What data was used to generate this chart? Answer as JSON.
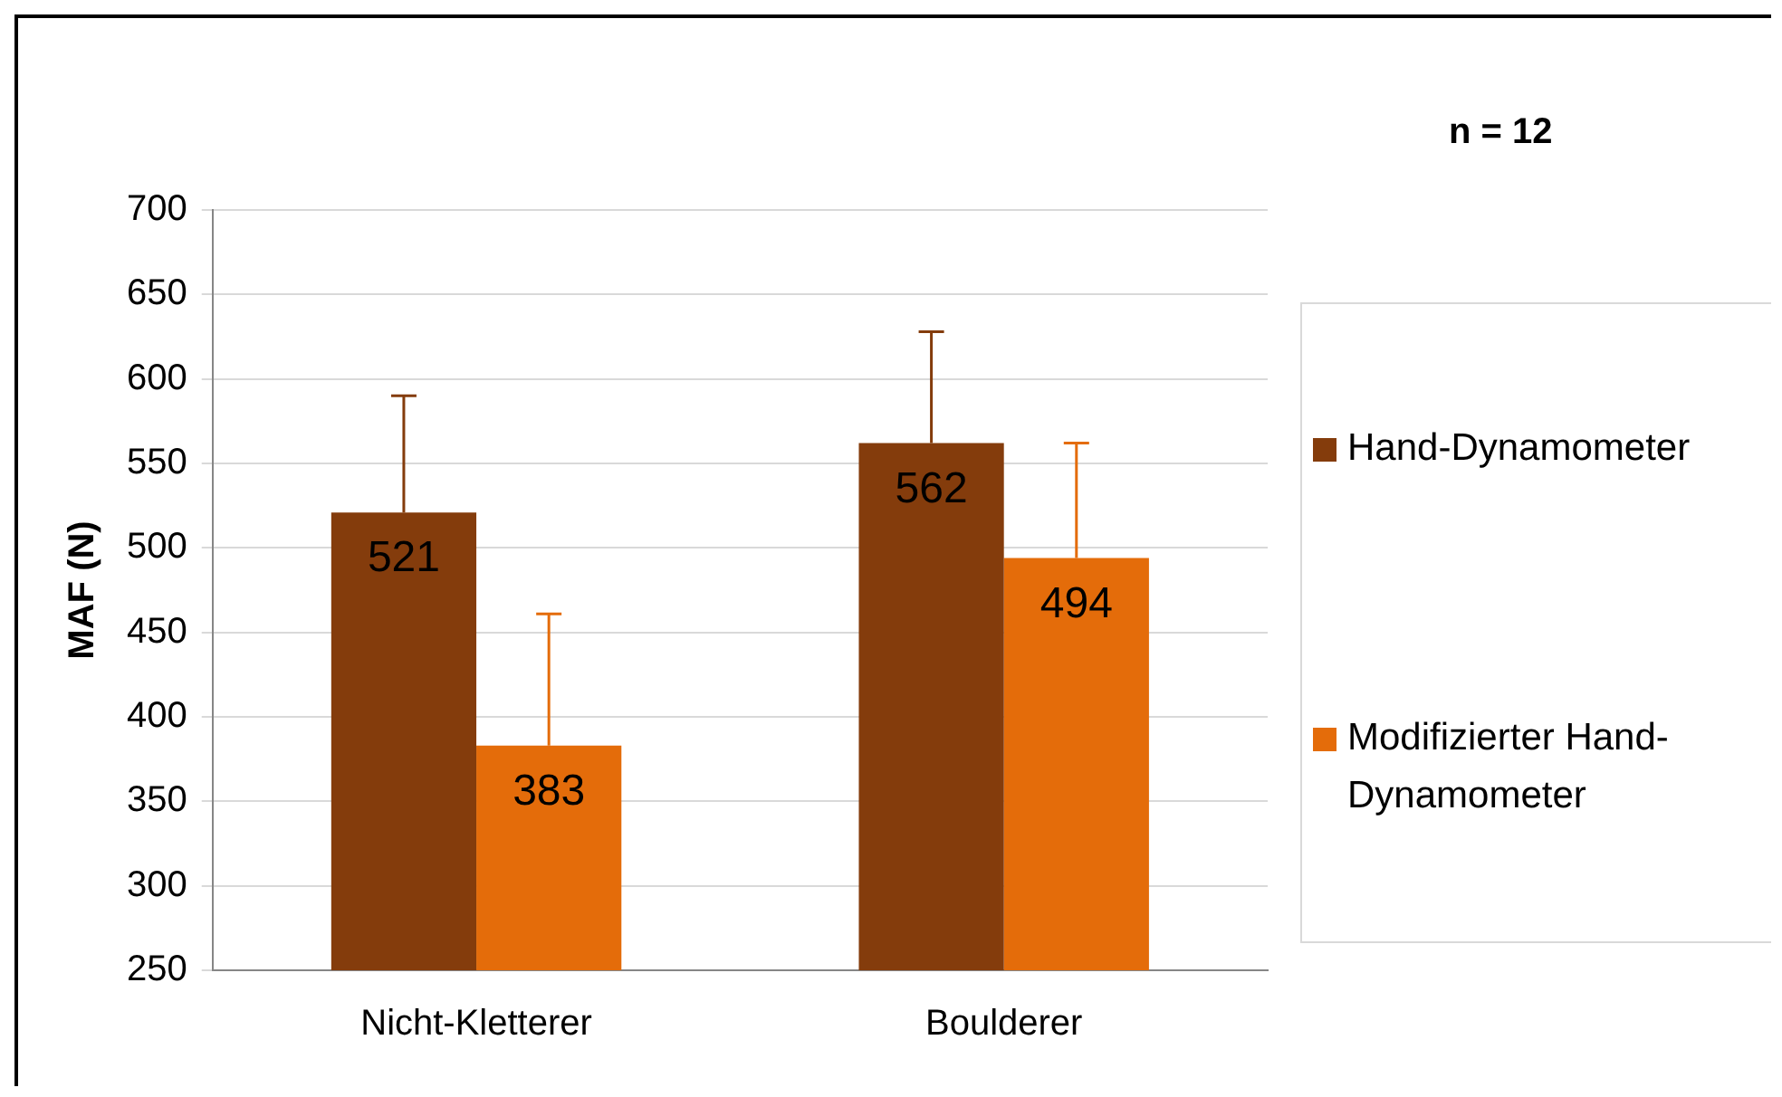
{
  "chart_data": {
    "type": "bar",
    "ylabel": "MAF (N)",
    "categories": [
      "Nicht-Kletterer",
      "Boulderer"
    ],
    "series": [
      {
        "name": "Hand-Dynamometer",
        "color": "#843c0c",
        "values": [
          521,
          562
        ],
        "errors": [
          [
            521,
            590
          ],
          [
            562,
            628
          ]
        ]
      },
      {
        "name": "Modifizierter Hand-Dynamometer",
        "color": "#e46c0a",
        "values": [
          383,
          494
        ],
        "errors": [
          [
            383,
            461
          ],
          [
            494,
            562
          ]
        ]
      }
    ],
    "ylim": [
      250,
      700
    ],
    "yticks": [
      250,
      300,
      350,
      400,
      450,
      500,
      550,
      600,
      650,
      700
    ],
    "grid": "y",
    "legend": "right",
    "data_labels": true,
    "annotations": [
      "n = 12"
    ]
  }
}
